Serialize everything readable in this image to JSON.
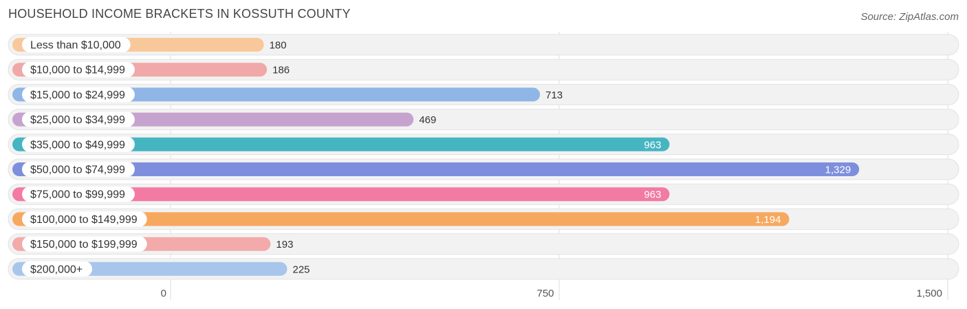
{
  "header": {
    "title": "HOUSEHOLD INCOME BRACKETS IN KOSSUTH COUNTY",
    "source": "Source: ZipAtlas.com"
  },
  "chart_data": {
    "type": "bar",
    "orientation": "horizontal",
    "title": "HOUSEHOLD INCOME BRACKETS IN KOSSUTH COUNTY",
    "xlabel": "",
    "ylabel": "",
    "xlim": [
      0,
      1500
    ],
    "grid": true,
    "legend": "none",
    "categories": [
      "Less than $10,000",
      "$10,000 to $14,999",
      "$15,000 to $24,999",
      "$25,000 to $34,999",
      "$35,000 to $49,999",
      "$50,000 to $74,999",
      "$75,000 to $99,999",
      "$100,000 to $149,999",
      "$150,000 to $199,999",
      "$200,000+"
    ],
    "values": [
      180,
      186,
      713,
      469,
      963,
      1329,
      963,
      1194,
      193,
      225
    ],
    "value_labels": [
      "180",
      "186",
      "713",
      "469",
      "963",
      "1,329",
      "963",
      "1,194",
      "193",
      "225"
    ],
    "colors": [
      "#f9c89a",
      "#f0a8a8",
      "#8fb6e6",
      "#c6a3cf",
      "#46b5c2",
      "#7d8fdc",
      "#f27aa3",
      "#f7a85f",
      "#f3aaaa",
      "#a8c6ec"
    ],
    "ticks": [
      {
        "value": 0,
        "label": "0"
      },
      {
        "value": 750,
        "label": "750"
      },
      {
        "value": 1500,
        "label": "1,500"
      }
    ]
  }
}
